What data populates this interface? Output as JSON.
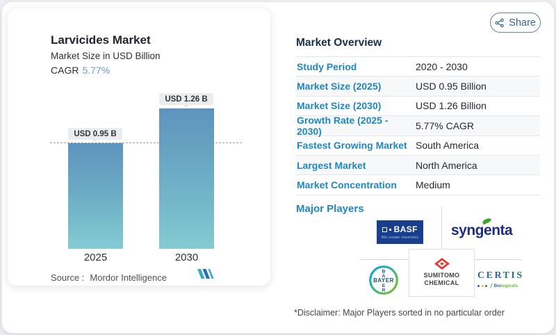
{
  "share": {
    "label": "Share"
  },
  "chart_panel": {
    "title": "Larvicides Market",
    "subtitle": "Market Size in USD Billion",
    "cagr_label": "CAGR",
    "cagr_value": "5.77%",
    "source_label": "Source :",
    "source_value": "Mordor Intelligence"
  },
  "chart_data": {
    "type": "bar",
    "title": "Larvicides Market",
    "ylabel": "Market Size in USD Billion",
    "categories": [
      "2025",
      "2030"
    ],
    "values": [
      0.95,
      1.26
    ],
    "bar_labels": [
      "USD 0.95 B",
      "USD 1.26 B"
    ],
    "cagr": "5.77%",
    "reference_line": 0.95,
    "ylim": [
      0,
      1.45
    ],
    "grid": false,
    "legend": "none",
    "colors": {
      "bar_top": "#5e93bd",
      "bar_bottom": "#85cad3",
      "reference_dash": "#98a0a7"
    }
  },
  "overview": {
    "heading": "Market Overview",
    "rows": [
      {
        "label": "Study Period",
        "value": "2020 - 2030"
      },
      {
        "label": "Market Size (2025)",
        "value": "USD 0.95 Billion"
      },
      {
        "label": "Market Size (2030)",
        "value": "USD 1.26 Billion"
      },
      {
        "label": "Growth Rate (2025 - 2030)",
        "value": "5.77% CAGR"
      },
      {
        "label": "Fastest Growing Market",
        "value": "South America"
      },
      {
        "label": "Largest Market",
        "value": "North America"
      },
      {
        "label": "Market Concentration",
        "value": "Medium"
      }
    ],
    "major_players_label": "Major Players",
    "disclaimer": "*Disclaimer: Major Players sorted in no particular order"
  },
  "players": {
    "basf": {
      "name": "BASF",
      "tagline": "We create chemistry",
      "brand_color": "#173f8e"
    },
    "syngenta": {
      "name": "syngenta",
      "brand_color": "#1e2f80",
      "leaf_color": "#3aa82c"
    },
    "bayer": {
      "name": "BAYER",
      "vertical": [
        "B",
        "A",
        "E",
        "R"
      ],
      "ring_blue": "#00a6e0",
      "ring_green": "#7fc425"
    },
    "sumitomo": {
      "line1": "SUMITOMO",
      "line2": "CHEMICAL",
      "mark_color": "#e23b33"
    },
    "certis": {
      "name": "CERTIS",
      "sub_bio": "Bio",
      "sub_rest": "logicals"
    }
  },
  "accent_colors": {
    "label_blue": "#1e87c3",
    "heading_navy": "#15304d",
    "share_blue": "#35678c"
  }
}
